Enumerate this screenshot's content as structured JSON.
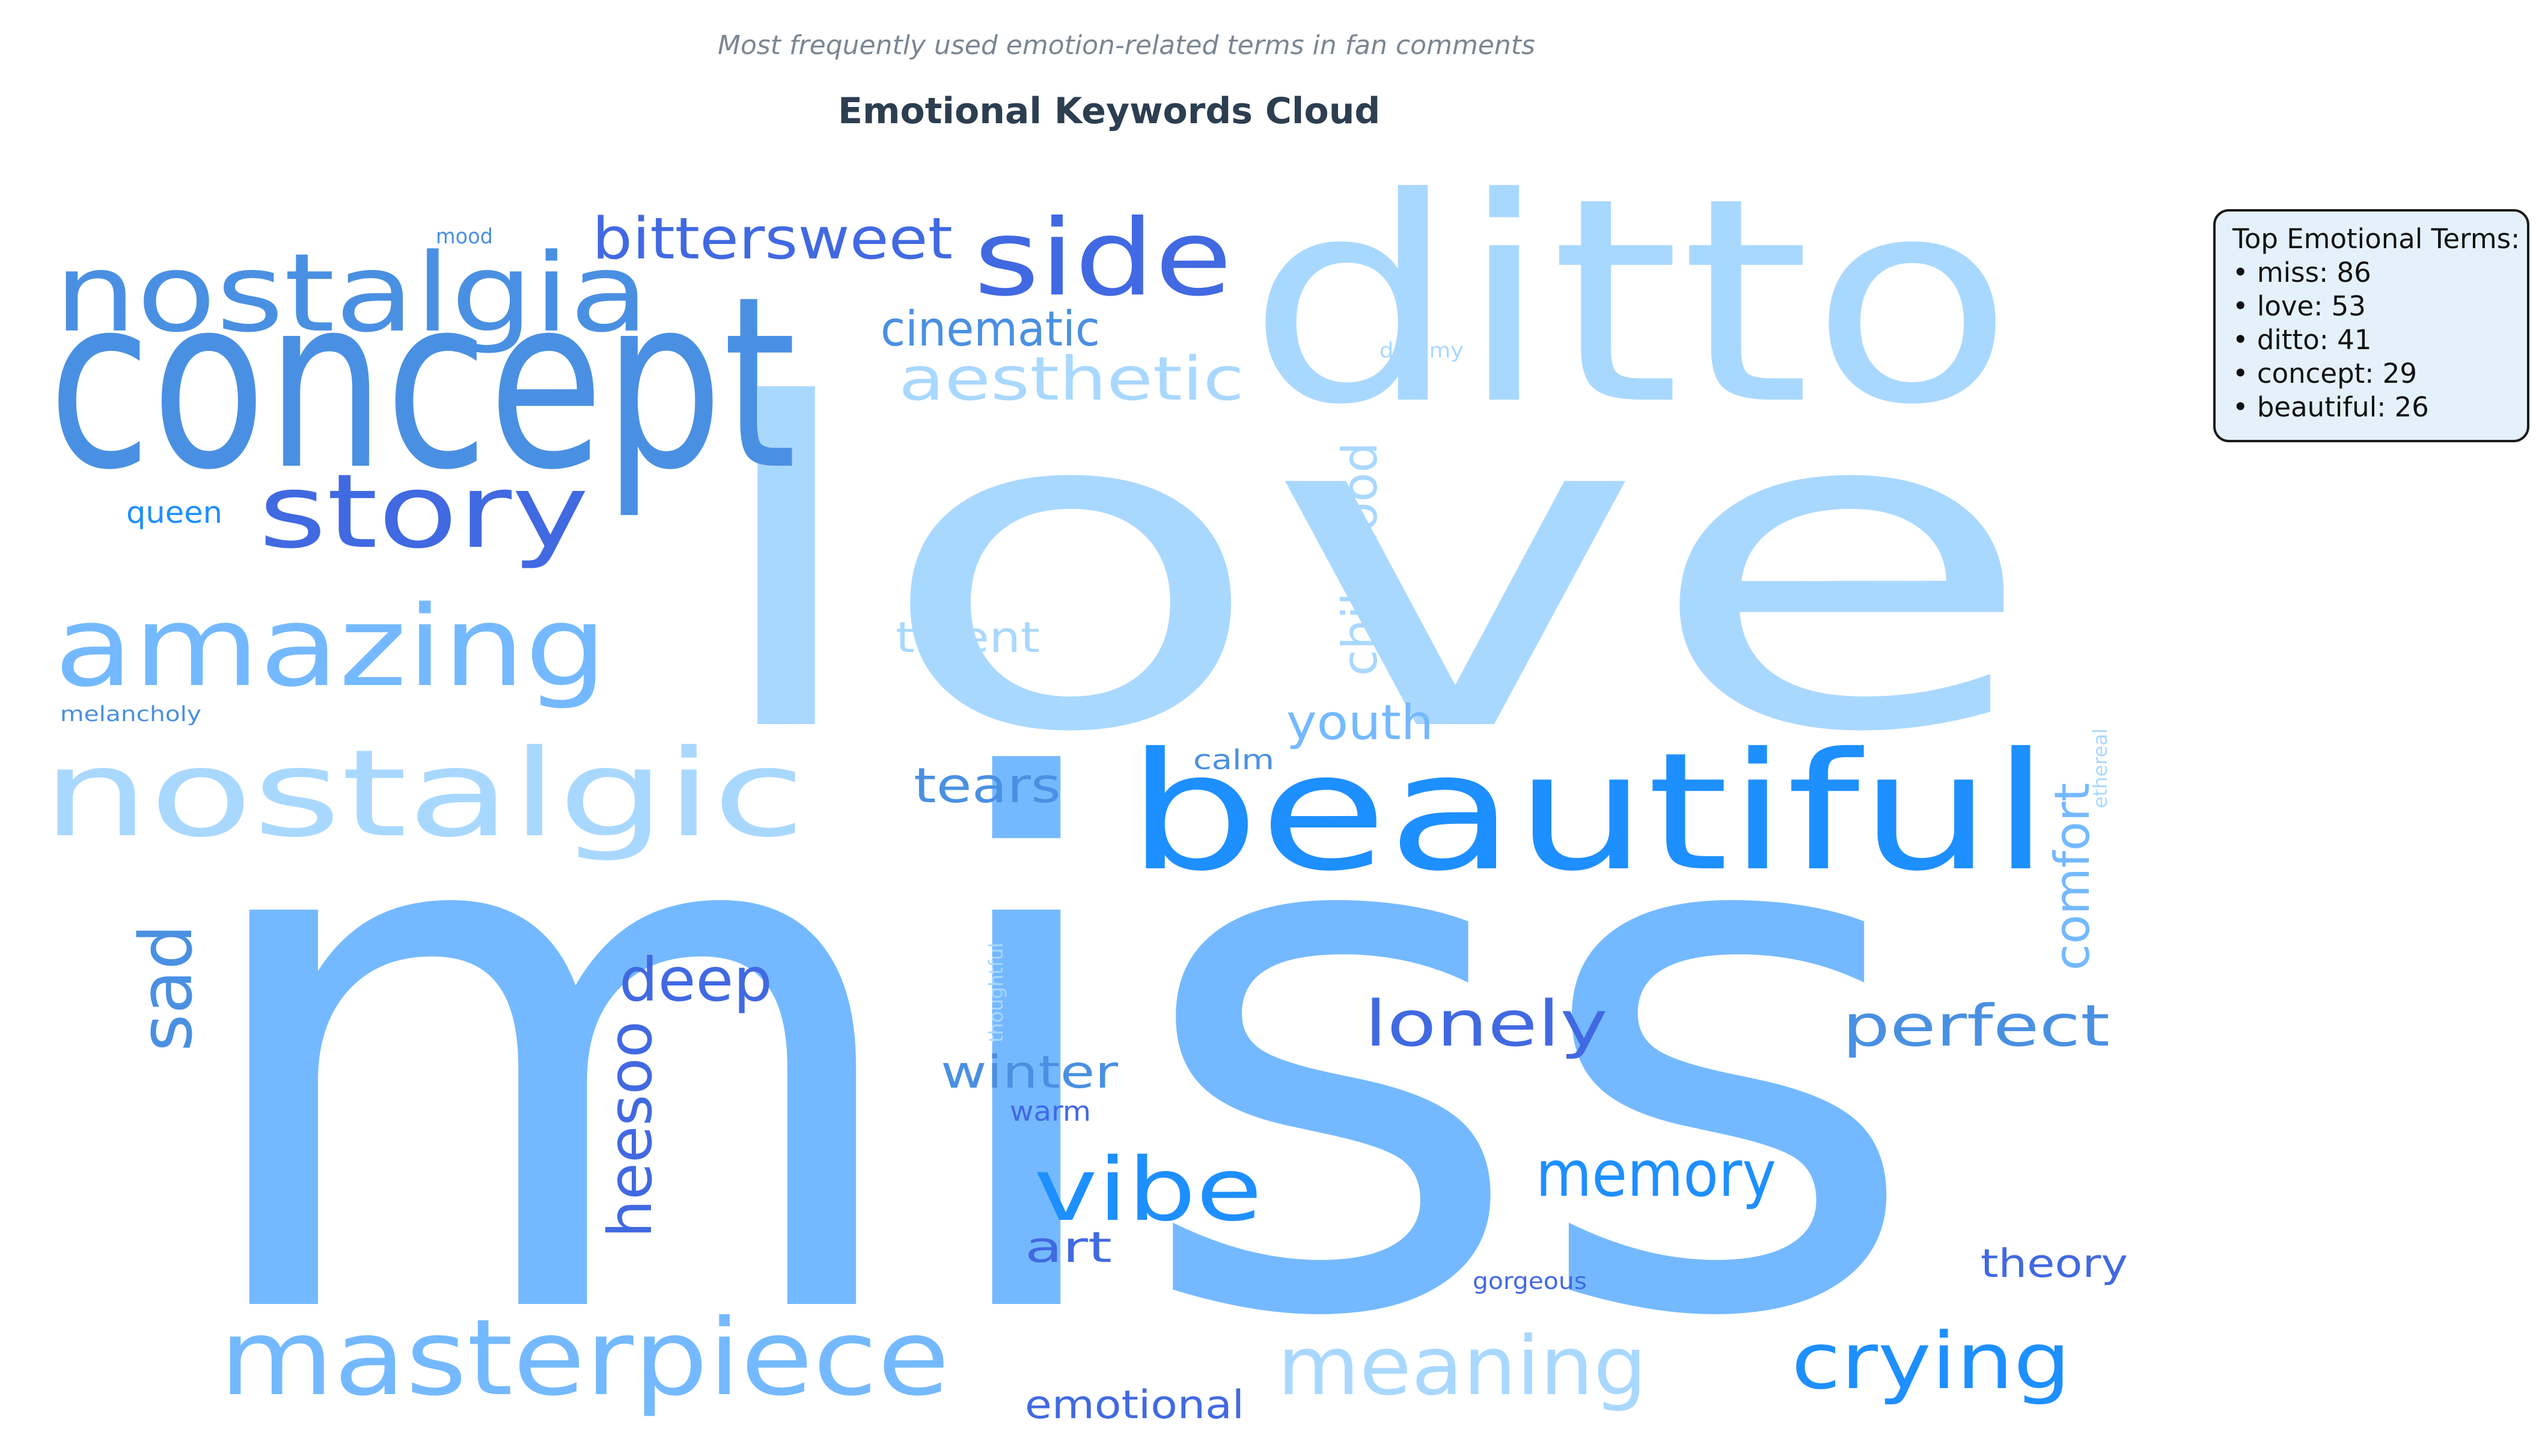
{
  "header": {
    "subtitle": "Most frequently used emotion-related terms in fan comments",
    "title": "Emotional Keywords Cloud"
  },
  "legend": {
    "title": "Top Emotional Terms:",
    "items": [
      "• miss: 86",
      "• love: 53",
      "• ditto: 41",
      "• concept: 29",
      "• beautiful: 26"
    ]
  },
  "chart_data": {
    "type": "wordcloud",
    "title": "Emotional Keywords Cloud",
    "subtitle": "Most frequently used emotion-related terms in fan comments",
    "top_terms": [
      {
        "word": "miss",
        "count": 86
      },
      {
        "word": "love",
        "count": 53
      },
      {
        "word": "ditto",
        "count": 41
      },
      {
        "word": "concept",
        "count": 29
      },
      {
        "word": "beautiful",
        "count": 26
      }
    ],
    "words": [
      {
        "text": "miss",
        "color": "#74b9ff"
      },
      {
        "text": "love",
        "color": "#a9d8ff"
      },
      {
        "text": "ditto",
        "color": "#a9d8ff"
      },
      {
        "text": "concept",
        "color": "#4a90e2"
      },
      {
        "text": "beautiful",
        "color": "#1e8fff"
      },
      {
        "text": "nostalgic",
        "color": "#a9d8ff"
      },
      {
        "text": "nostalgia",
        "color": "#4a90e2"
      },
      {
        "text": "amazing",
        "color": "#74b9ff"
      },
      {
        "text": "story",
        "color": "#4169e1"
      },
      {
        "text": "side",
        "color": "#4169e1"
      },
      {
        "text": "masterpiece",
        "color": "#74b9ff"
      },
      {
        "text": "vibe",
        "color": "#1e8fff"
      },
      {
        "text": "crying",
        "color": "#1e8fff"
      },
      {
        "text": "meaning",
        "color": "#a9d8ff"
      },
      {
        "text": "bittersweet",
        "color": "#4169e1"
      },
      {
        "text": "aesthetic",
        "color": "#a9d8ff"
      },
      {
        "text": "memory",
        "color": "#1e8fff"
      },
      {
        "text": "lonely",
        "color": "#4169e1"
      },
      {
        "text": "perfect",
        "color": "#4a90e2"
      },
      {
        "text": "sad",
        "color": "#4a90e2"
      },
      {
        "text": "heesoo",
        "color": "#4169e1"
      },
      {
        "text": "deep",
        "color": "#4169e1"
      },
      {
        "text": "childhood",
        "color": "#a9d8ff"
      },
      {
        "text": "comfort",
        "color": "#74b9ff"
      },
      {
        "text": "cinematic",
        "color": "#4a90e2"
      },
      {
        "text": "youth",
        "color": "#74b9ff"
      },
      {
        "text": "tears",
        "color": "#4a90e2"
      },
      {
        "text": "winter",
        "color": "#4a90e2"
      },
      {
        "text": "talent",
        "color": "#a9d8ff"
      },
      {
        "text": "emotional",
        "color": "#4169e1"
      },
      {
        "text": "art",
        "color": "#4169e1"
      },
      {
        "text": "theory",
        "color": "#4169e1"
      },
      {
        "text": "queen",
        "color": "#1e8fff"
      },
      {
        "text": "warm",
        "color": "#4169e1"
      },
      {
        "text": "calm",
        "color": "#4a90e2"
      },
      {
        "text": "mood",
        "color": "#4a90e2"
      },
      {
        "text": "melancholy",
        "color": "#4a90e2"
      },
      {
        "text": "gorgeous",
        "color": "#4169e1"
      },
      {
        "text": "dreamy",
        "color": "#a9d8ff"
      },
      {
        "text": "ethereal",
        "color": "#a9d8ff"
      },
      {
        "text": "thoughtful",
        "color": "#a9d8ff"
      }
    ]
  }
}
